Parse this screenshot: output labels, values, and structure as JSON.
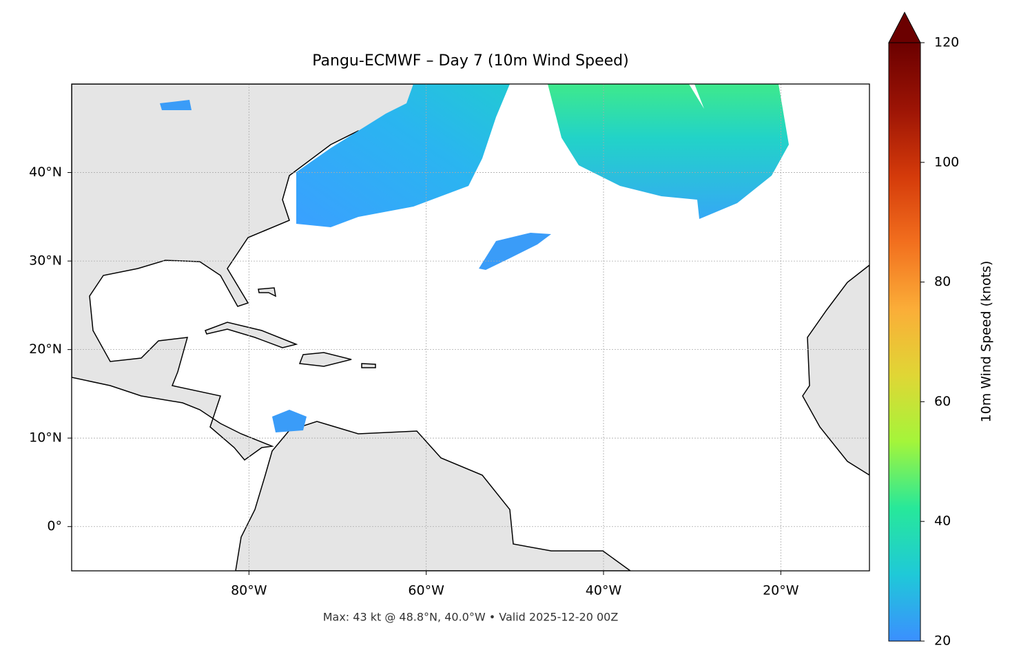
{
  "map": {
    "title": "Pangu-ECMWF – Day 7 (10m Wind Speed)",
    "footer": "Max: 43 kt @ 48.8°N, 40.0°W • Valid 2025-12-20 00Z",
    "xlim": [
      -100,
      -10
    ],
    "ylim": [
      -5,
      50
    ],
    "xticks": [
      {
        "value": -80,
        "label": "80°W"
      },
      {
        "value": -60,
        "label": "60°W"
      },
      {
        "value": -40,
        "label": "40°W"
      },
      {
        "value": -20,
        "label": "20°W"
      }
    ],
    "yticks": [
      {
        "value": 0,
        "label": "0°"
      },
      {
        "value": 10,
        "label": "10°N"
      },
      {
        "value": 20,
        "label": "20°N"
      },
      {
        "value": 30,
        "label": "30°N"
      },
      {
        "value": 40,
        "label": "40°N"
      }
    ],
    "grid": true,
    "colorbar": {
      "label": "10m Wind Speed (knots)",
      "lim": [
        20,
        120
      ],
      "ticks": [
        20,
        40,
        60,
        80,
        100,
        120
      ],
      "colors": [
        "#3b8fff",
        "#1fc9d8",
        "#27e89a",
        "#a4f53a",
        "#e0d635",
        "#fbad38",
        "#f26f1e",
        "#d43a0a",
        "#9c1405",
        "#6b0000"
      ]
    }
  }
}
